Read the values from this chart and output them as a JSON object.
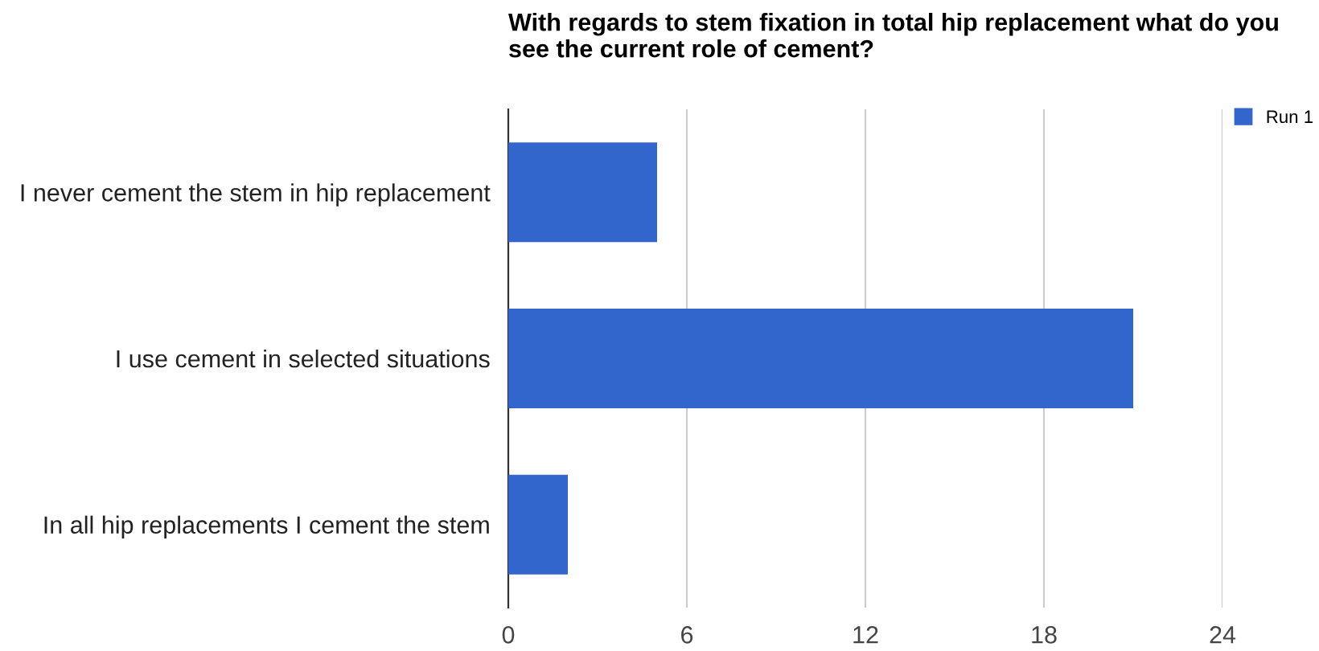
{
  "chart_data": {
    "type": "bar",
    "orientation": "horizontal",
    "title": "With regards to stem fixation in total hip replacement what do you see the current role of cement?",
    "categories": [
      "I never cement the stem in hip replacement",
      "I use cement in selected situations",
      "In all hip replacements I cement the stem"
    ],
    "series": [
      {
        "name": "Run 1",
        "color": "#3366cc",
        "values": [
          5,
          21,
          2
        ]
      }
    ],
    "xlim": [
      0,
      24
    ],
    "xticks": [
      0,
      6,
      12,
      18,
      24
    ],
    "grid": "x",
    "legend": "top right"
  }
}
